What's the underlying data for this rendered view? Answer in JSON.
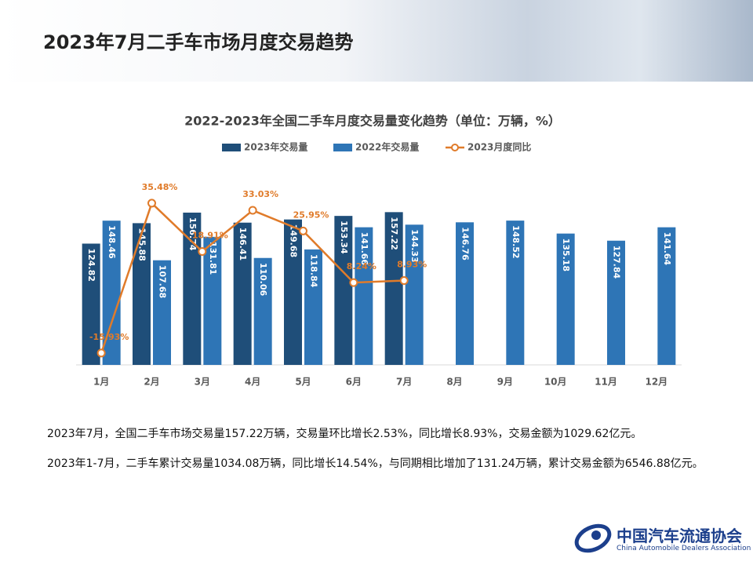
{
  "header": {
    "title": "2023年7月二手车市场月度交易趋势"
  },
  "chart_data": {
    "type": "bar",
    "title": "2022-2023年全国二手车月度交易量变化趋势（单位：万辆，%）",
    "categories": [
      "1月",
      "2月",
      "3月",
      "4月",
      "5月",
      "6月",
      "7月",
      "8月",
      "9月",
      "10月",
      "11月",
      "12月"
    ],
    "ylim": [
      0,
      210
    ],
    "y2lim": [
      -20,
      50
    ],
    "series": [
      {
        "name": "2023年交易量",
        "color": "#1f4e79",
        "values": [
          124.82,
          145.88,
          156.74,
          146.41,
          149.68,
          153.34,
          157.22,
          null,
          null,
          null,
          null,
          null
        ]
      },
      {
        "name": "2022年交易量",
        "color": "#2e75b6",
        "values": [
          148.46,
          107.68,
          131.81,
          110.06,
          118.84,
          141.66,
          144.33,
          146.76,
          148.52,
          135.18,
          127.84,
          141.64
        ]
      },
      {
        "name": "2023月度同比",
        "color": "#e07b2a",
        "type": "line",
        "axis": "y2",
        "values": [
          -15.93,
          35.48,
          18.91,
          33.03,
          25.95,
          8.24,
          8.93,
          null,
          null,
          null,
          null,
          null
        ],
        "value_labels": [
          "-15.93%",
          "35.48%",
          "18.91%",
          "33.03%",
          "25.95%",
          "8.24%",
          "8.93%",
          null,
          null,
          null,
          null,
          null
        ]
      }
    ]
  },
  "notes": [
    "2023年7月，全国二手车市场交易量157.22万辆，交易量环比增长2.53%，同比增长8.93%，交易金额为1029.62亿元。",
    "2023年1-7月，二手车累计交易量1034.08万辆，同比增长14.54%，与同期相比增加了131.24万辆，累计交易金额为6546.88亿元。"
  ],
  "logo": {
    "cn": "中国汽车流通协会",
    "en": "China Automobile Dealers Association"
  }
}
